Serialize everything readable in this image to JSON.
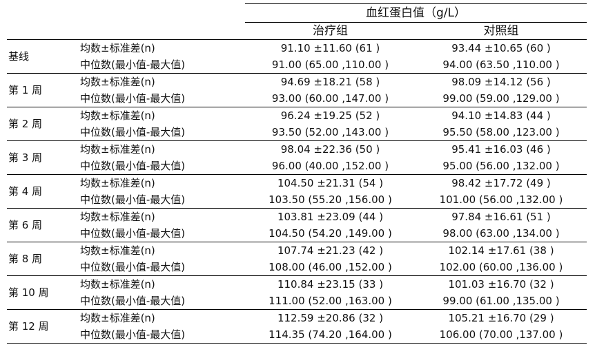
{
  "table": {
    "super_header": "血红蛋白值（g/L）",
    "groups": [
      "治疗组",
      "对照组"
    ],
    "rows": [
      {
        "period": "基线",
        "mean_label": "均数±标准差(n)",
        "median_label": "中位数(最小值-最大值)",
        "treatment": {
          "mean": "91.10 ±11.60 (61 )",
          "median": "91.00 (65.00 ,110.00 )"
        },
        "control": {
          "mean": "93.44 ±10.65 (60 )",
          "median": "94.00 (63.50 ,110.00 )"
        }
      },
      {
        "period": "第 1 周",
        "mean_label": "均数±标准差(n)",
        "median_label": "中位数(最小值-最大值)",
        "treatment": {
          "mean": "94.69 ±18.21 (58 )",
          "median": "93.00 (60.00 ,147.00 )"
        },
        "control": {
          "mean": "98.09 ±14.12 (56 )",
          "median": "99.00 (59.00 ,129.00 )"
        }
      },
      {
        "period": "第 2 周",
        "mean_label": "均数±标准差(n)",
        "median_label": "中位数(最小值-最大值)",
        "treatment": {
          "mean": "96.24 ±19.25 (52 )",
          "median": "93.50 (52.00 ,143.00 )"
        },
        "control": {
          "mean": "94.10 ±14.83 (44 )",
          "median": "95.50 (58.00 ,123.00 )"
        }
      },
      {
        "period": "第 3 周",
        "mean_label": "均数±标准差(n)",
        "median_label": "中位数(最小值-最大值)",
        "treatment": {
          "mean": "98.04 ±22.36 (50 )",
          "median": "96.00 (40.00 ,152.00 )"
        },
        "control": {
          "mean": "95.41 ±16.03 (46 )",
          "median": "95.00 (56.00 ,132.00 )"
        }
      },
      {
        "period": "第 4 周",
        "mean_label": "均数±标准差(n)",
        "median_label": "中位数(最小值-最大值)",
        "treatment": {
          "mean": "104.50 ±21.31 (54 )",
          "median": "103.50 (55.20 ,156.00 )"
        },
        "control": {
          "mean": "98.42 ±17.72 (49 )",
          "median": "101.00 (56.00 ,132.00 )"
        }
      },
      {
        "period": "第 6 周",
        "mean_label": "均数±标准差(n)",
        "median_label": "中位数(最小值-最大值)",
        "treatment": {
          "mean": "103.81 ±23.09 (44 )",
          "median": "104.50 (54.20 ,149.00 )"
        },
        "control": {
          "mean": "97.84 ±16.61 (51 )",
          "median": "98.00 (63.00 ,134.00 )"
        }
      },
      {
        "period": "第 8 周",
        "mean_label": "均数±标准差(n)",
        "median_label": "中位数(最小值-最大值)",
        "treatment": {
          "mean": "107.74 ±21.23 (42 )",
          "median": "108.00 (46.00 ,152.00 )"
        },
        "control": {
          "mean": "102.14 ±17.61 (38 )",
          "median": "102.00 (60.00 ,136.00 )"
        }
      },
      {
        "period": "第 10 周",
        "mean_label": "均数±标准差(n)",
        "median_label": "中位数(最小值-最大值)",
        "treatment": {
          "mean": "110.84 ±23.15 (33 )",
          "median": "111.00 (52.00 ,163.00 )"
        },
        "control": {
          "mean": "101.03 ±16.70 (32 )",
          "median": "99.00 (61.00 ,135.00 )"
        }
      },
      {
        "period": "第 12 周",
        "mean_label": "均数±标准差(n)",
        "median_label": "中位数(最小值-最大值)",
        "treatment": {
          "mean": "112.59 ±20.86 (32 )",
          "median": "114.35 (74.20 ,164.00 )"
        },
        "control": {
          "mean": "105.21 ±16.70 (29 )",
          "median": "106.00 (70.00 ,137.00 )"
        }
      }
    ]
  }
}
